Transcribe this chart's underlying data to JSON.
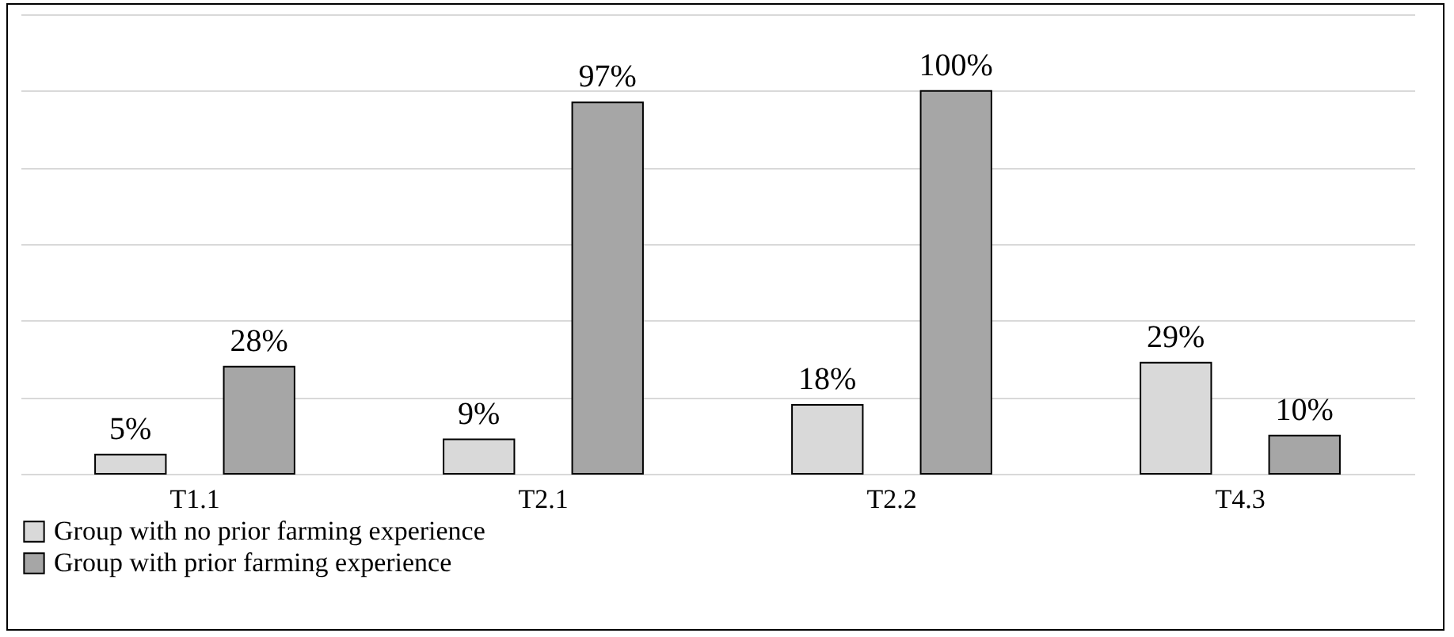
{
  "chart_data": {
    "type": "bar",
    "categories": [
      "T1.1",
      "T2.1",
      "T2.2",
      "T4.3"
    ],
    "series": [
      {
        "name": "Group with no prior farming experience",
        "color": "#d9d9d9",
        "values": [
          5,
          9,
          18,
          29
        ],
        "value_labels": [
          "5%",
          "9%",
          "18%",
          "29%"
        ]
      },
      {
        "name": "Group with prior farming experience",
        "color": "#a6a6a6",
        "values": [
          28,
          97,
          100,
          10
        ],
        "value_labels": [
          "28%",
          "97%",
          "100%",
          "10%"
        ]
      }
    ],
    "ylim": [
      0,
      120
    ],
    "yticks": [
      {
        "value": 0,
        "label": null
      },
      {
        "value": 20,
        "label": null
      },
      {
        "value": 40,
        "label": null
      },
      {
        "value": 60,
        "label": null
      },
      {
        "value": 80,
        "label": null
      },
      {
        "value": 100,
        "label": null
      },
      {
        "value": 120,
        "label": null
      }
    ],
    "grid": "y",
    "legend": "bottom",
    "tick_labels": "x"
  }
}
